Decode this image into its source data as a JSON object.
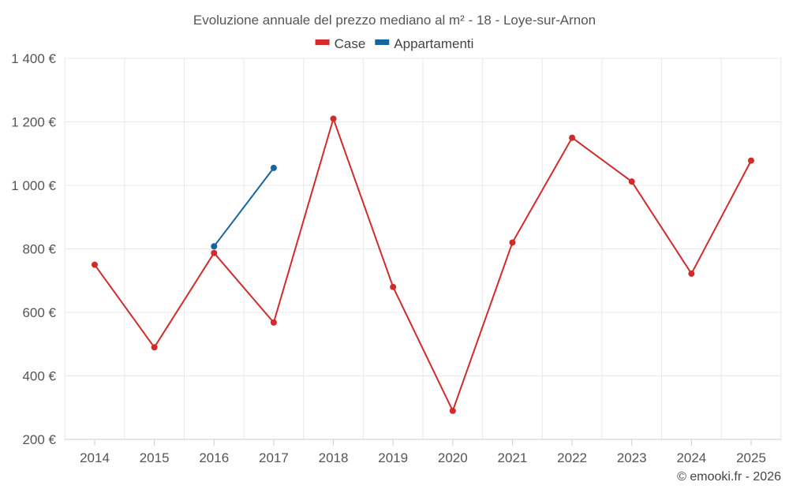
{
  "chart_data": {
    "type": "line",
    "title": "Evoluzione annuale del prezzo mediano al m² - 18 - Loye-sur-Arnon",
    "categories": [
      "2014",
      "2015",
      "2016",
      "2017",
      "2018",
      "2019",
      "2020",
      "2021",
      "2022",
      "2023",
      "2024",
      "2025"
    ],
    "ylim": [
      200,
      1400
    ],
    "yticks": [
      200,
      400,
      600,
      800,
      1000,
      1200,
      1400
    ],
    "ytick_labels": [
      "200 €",
      "400 €",
      "600 €",
      "800 €",
      "1 000 €",
      "1 200 €",
      "1 400 €"
    ],
    "xlabel": "",
    "ylabel": "",
    "grid": true,
    "legend_position": "top-center",
    "series": [
      {
        "name": "Case",
        "color": "#d32a2a",
        "values": [
          750,
          490,
          787,
          568,
          1210,
          680,
          290,
          820,
          1150,
          1012,
          722,
          1078
        ]
      },
      {
        "name": "Appartamenti",
        "color": "#1565a0",
        "values": [
          null,
          null,
          808,
          1055,
          null,
          null,
          null,
          null,
          null,
          null,
          null,
          null
        ]
      }
    ]
  },
  "credit": "© emooki.fr - 2026"
}
